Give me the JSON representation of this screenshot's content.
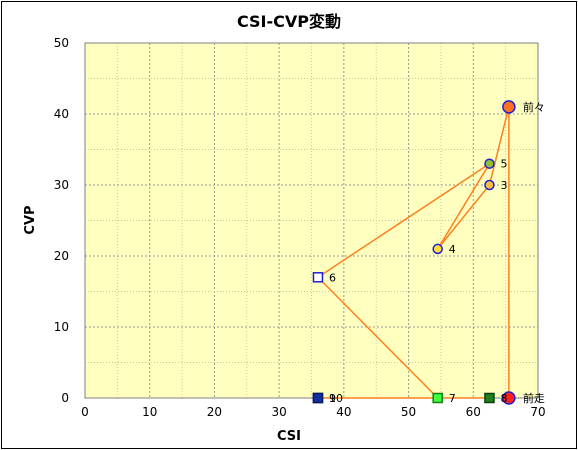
{
  "chart_data": {
    "type": "scatter",
    "title": "CSI-CVP変動",
    "xlabel": "CSI",
    "ylabel": "CVP",
    "xlim": [
      0,
      70
    ],
    "ylim": [
      0,
      50
    ],
    "xticks": [
      "0",
      "10",
      "20",
      "30",
      "40",
      "50",
      "60",
      "70"
    ],
    "yticks": [
      "0",
      "10",
      "20",
      "30",
      "40",
      "50"
    ],
    "grid": true,
    "background": "#ffffc0",
    "line_color": "#ff8020",
    "connect_order": [
      "前走",
      "前々",
      "3",
      "4",
      "5",
      "6",
      "7",
      "8",
      "9",
      "10"
    ],
    "points": [
      {
        "label": "前走",
        "x": 65.5,
        "y": 0,
        "marker": "circle",
        "fill": "#ff2020",
        "stroke": "#2020d0",
        "size": "large"
      },
      {
        "label": "前々",
        "x": 65.5,
        "y": 41,
        "marker": "circle",
        "fill": "#ff7020",
        "stroke": "#2020d0",
        "size": "large"
      },
      {
        "label": "3",
        "x": 62.5,
        "y": 30,
        "marker": "circle",
        "fill": "#ffc040",
        "stroke": "#2020d0",
        "size": "small"
      },
      {
        "label": "4",
        "x": 54.5,
        "y": 21,
        "marker": "circle",
        "fill": "#ffe040",
        "stroke": "#2020d0",
        "size": "small"
      },
      {
        "label": "5",
        "x": 62.5,
        "y": 33,
        "marker": "circle",
        "fill": "#90c030",
        "stroke": "#2020d0",
        "size": "small"
      },
      {
        "label": "6",
        "x": 36,
        "y": 17,
        "marker": "square",
        "fill": "#ffffff",
        "stroke": "#2020d0",
        "size": "small"
      },
      {
        "label": "7",
        "x": 54.5,
        "y": 0,
        "marker": "square",
        "fill": "#40ff40",
        "stroke": "#108010",
        "size": "small"
      },
      {
        "label": "8",
        "x": 62.5,
        "y": 0,
        "marker": "square",
        "fill": "#208020",
        "stroke": "#0a400a",
        "size": "small"
      },
      {
        "label": "9",
        "x": 36,
        "y": 0,
        "marker": "square",
        "fill": "#1030a0",
        "stroke": "#0a1a60",
        "size": "small"
      },
      {
        "label": "10",
        "x": 36,
        "y": 0,
        "marker": "square",
        "fill": "#1030a0",
        "stroke": "#0a1a60",
        "size": "small"
      }
    ]
  }
}
